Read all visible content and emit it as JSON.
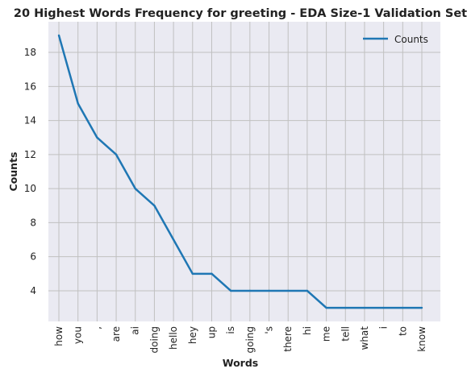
{
  "chart_data": {
    "type": "line",
    "title": "20 Highest Words Frequency for greeting - EDA Size-1 Validation Set",
    "xlabel": "Words",
    "ylabel": "Counts",
    "categories": [
      "how",
      "you",
      ",",
      "are",
      "ai",
      "doing",
      "hello",
      "hey",
      "up",
      "is",
      "going",
      "'s",
      "there",
      "hi",
      "me",
      "tell",
      "what",
      "i",
      "to",
      "know"
    ],
    "series": [
      {
        "name": "Counts",
        "values": [
          19,
          15,
          13,
          12,
          10,
          9,
          7,
          5,
          5,
          4,
          4,
          4,
          4,
          4,
          3,
          3,
          3,
          3,
          3,
          3
        ],
        "color": "#1f77b4"
      }
    ],
    "ylim": [
      2.2,
      19.8
    ],
    "yticks": [
      "4",
      "6",
      "8",
      "10",
      "12",
      "14",
      "16",
      "18"
    ],
    "grid": true,
    "legend_position": "top-right",
    "background": "#eaeaf2",
    "grid_color": "#c0c0c0"
  }
}
